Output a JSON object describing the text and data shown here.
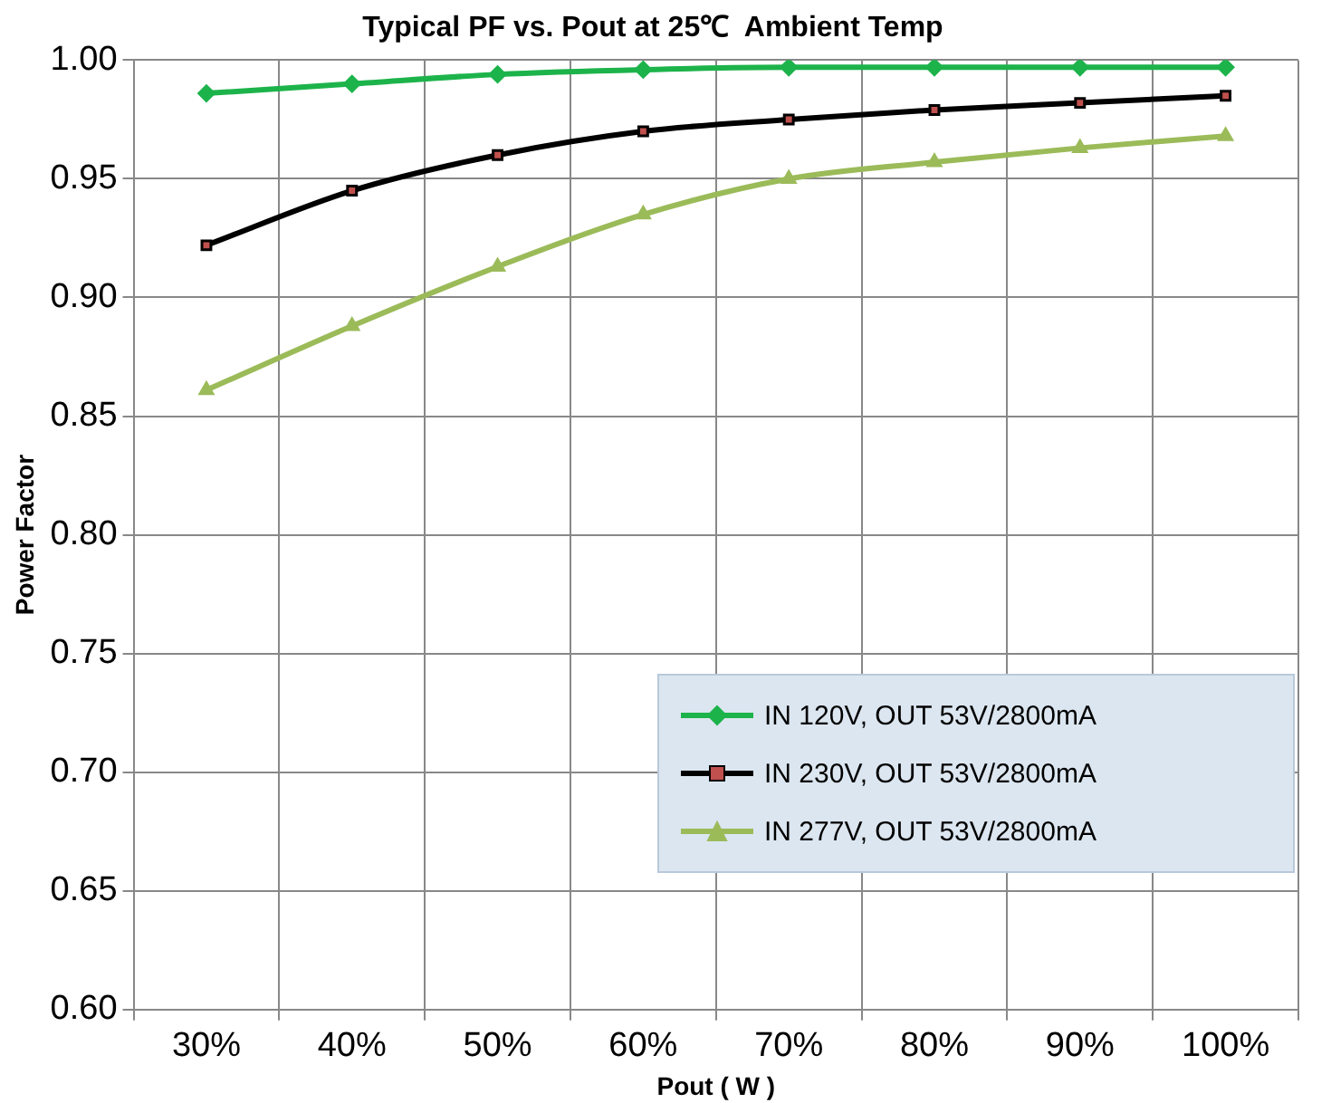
{
  "chart_data": {
    "type": "line",
    "title": "Typical PF vs. Pout at 25℃  Ambient Temp",
    "xlabel": "Pout ( W )",
    "ylabel": "Power Factor",
    "categories": [
      "30%",
      "40%",
      "50%",
      "60%",
      "70%",
      "80%",
      "90%",
      "100%"
    ],
    "series": [
      {
        "name": "IN 120V, OUT 53V/2800mA",
        "color": "#1db34b",
        "marker": "diamond",
        "values": [
          0.986,
          0.99,
          0.994,
          0.996,
          0.997,
          0.997,
          0.997,
          0.997
        ]
      },
      {
        "name": "IN 230V, OUT 53V/2800mA",
        "color": "#000000",
        "marker": "square",
        "values": [
          0.922,
          0.945,
          0.96,
          0.97,
          0.975,
          0.979,
          0.982,
          0.985
        ]
      },
      {
        "name": "IN 277V, OUT 53V/2800mA",
        "color": "#9bbb59",
        "marker": "triangle",
        "values": [
          0.861,
          0.888,
          0.913,
          0.935,
          0.95,
          0.957,
          0.963,
          0.968
        ]
      }
    ],
    "ylim": [
      0.6,
      1.0
    ],
    "yticks": [
      {
        "value": 0.6,
        "label": "0.60"
      },
      {
        "value": 0.65,
        "label": "0.65"
      },
      {
        "value": 0.7,
        "label": "0.70"
      },
      {
        "value": 0.75,
        "label": "0.75"
      },
      {
        "value": 0.8,
        "label": "0.80"
      },
      {
        "value": 0.85,
        "label": "0.85"
      },
      {
        "value": 0.9,
        "label": "0.90"
      },
      {
        "value": 0.95,
        "label": "0.95"
      },
      {
        "value": 1.0,
        "label": "1.00"
      }
    ],
    "grid": true,
    "legend": "bottom right"
  }
}
